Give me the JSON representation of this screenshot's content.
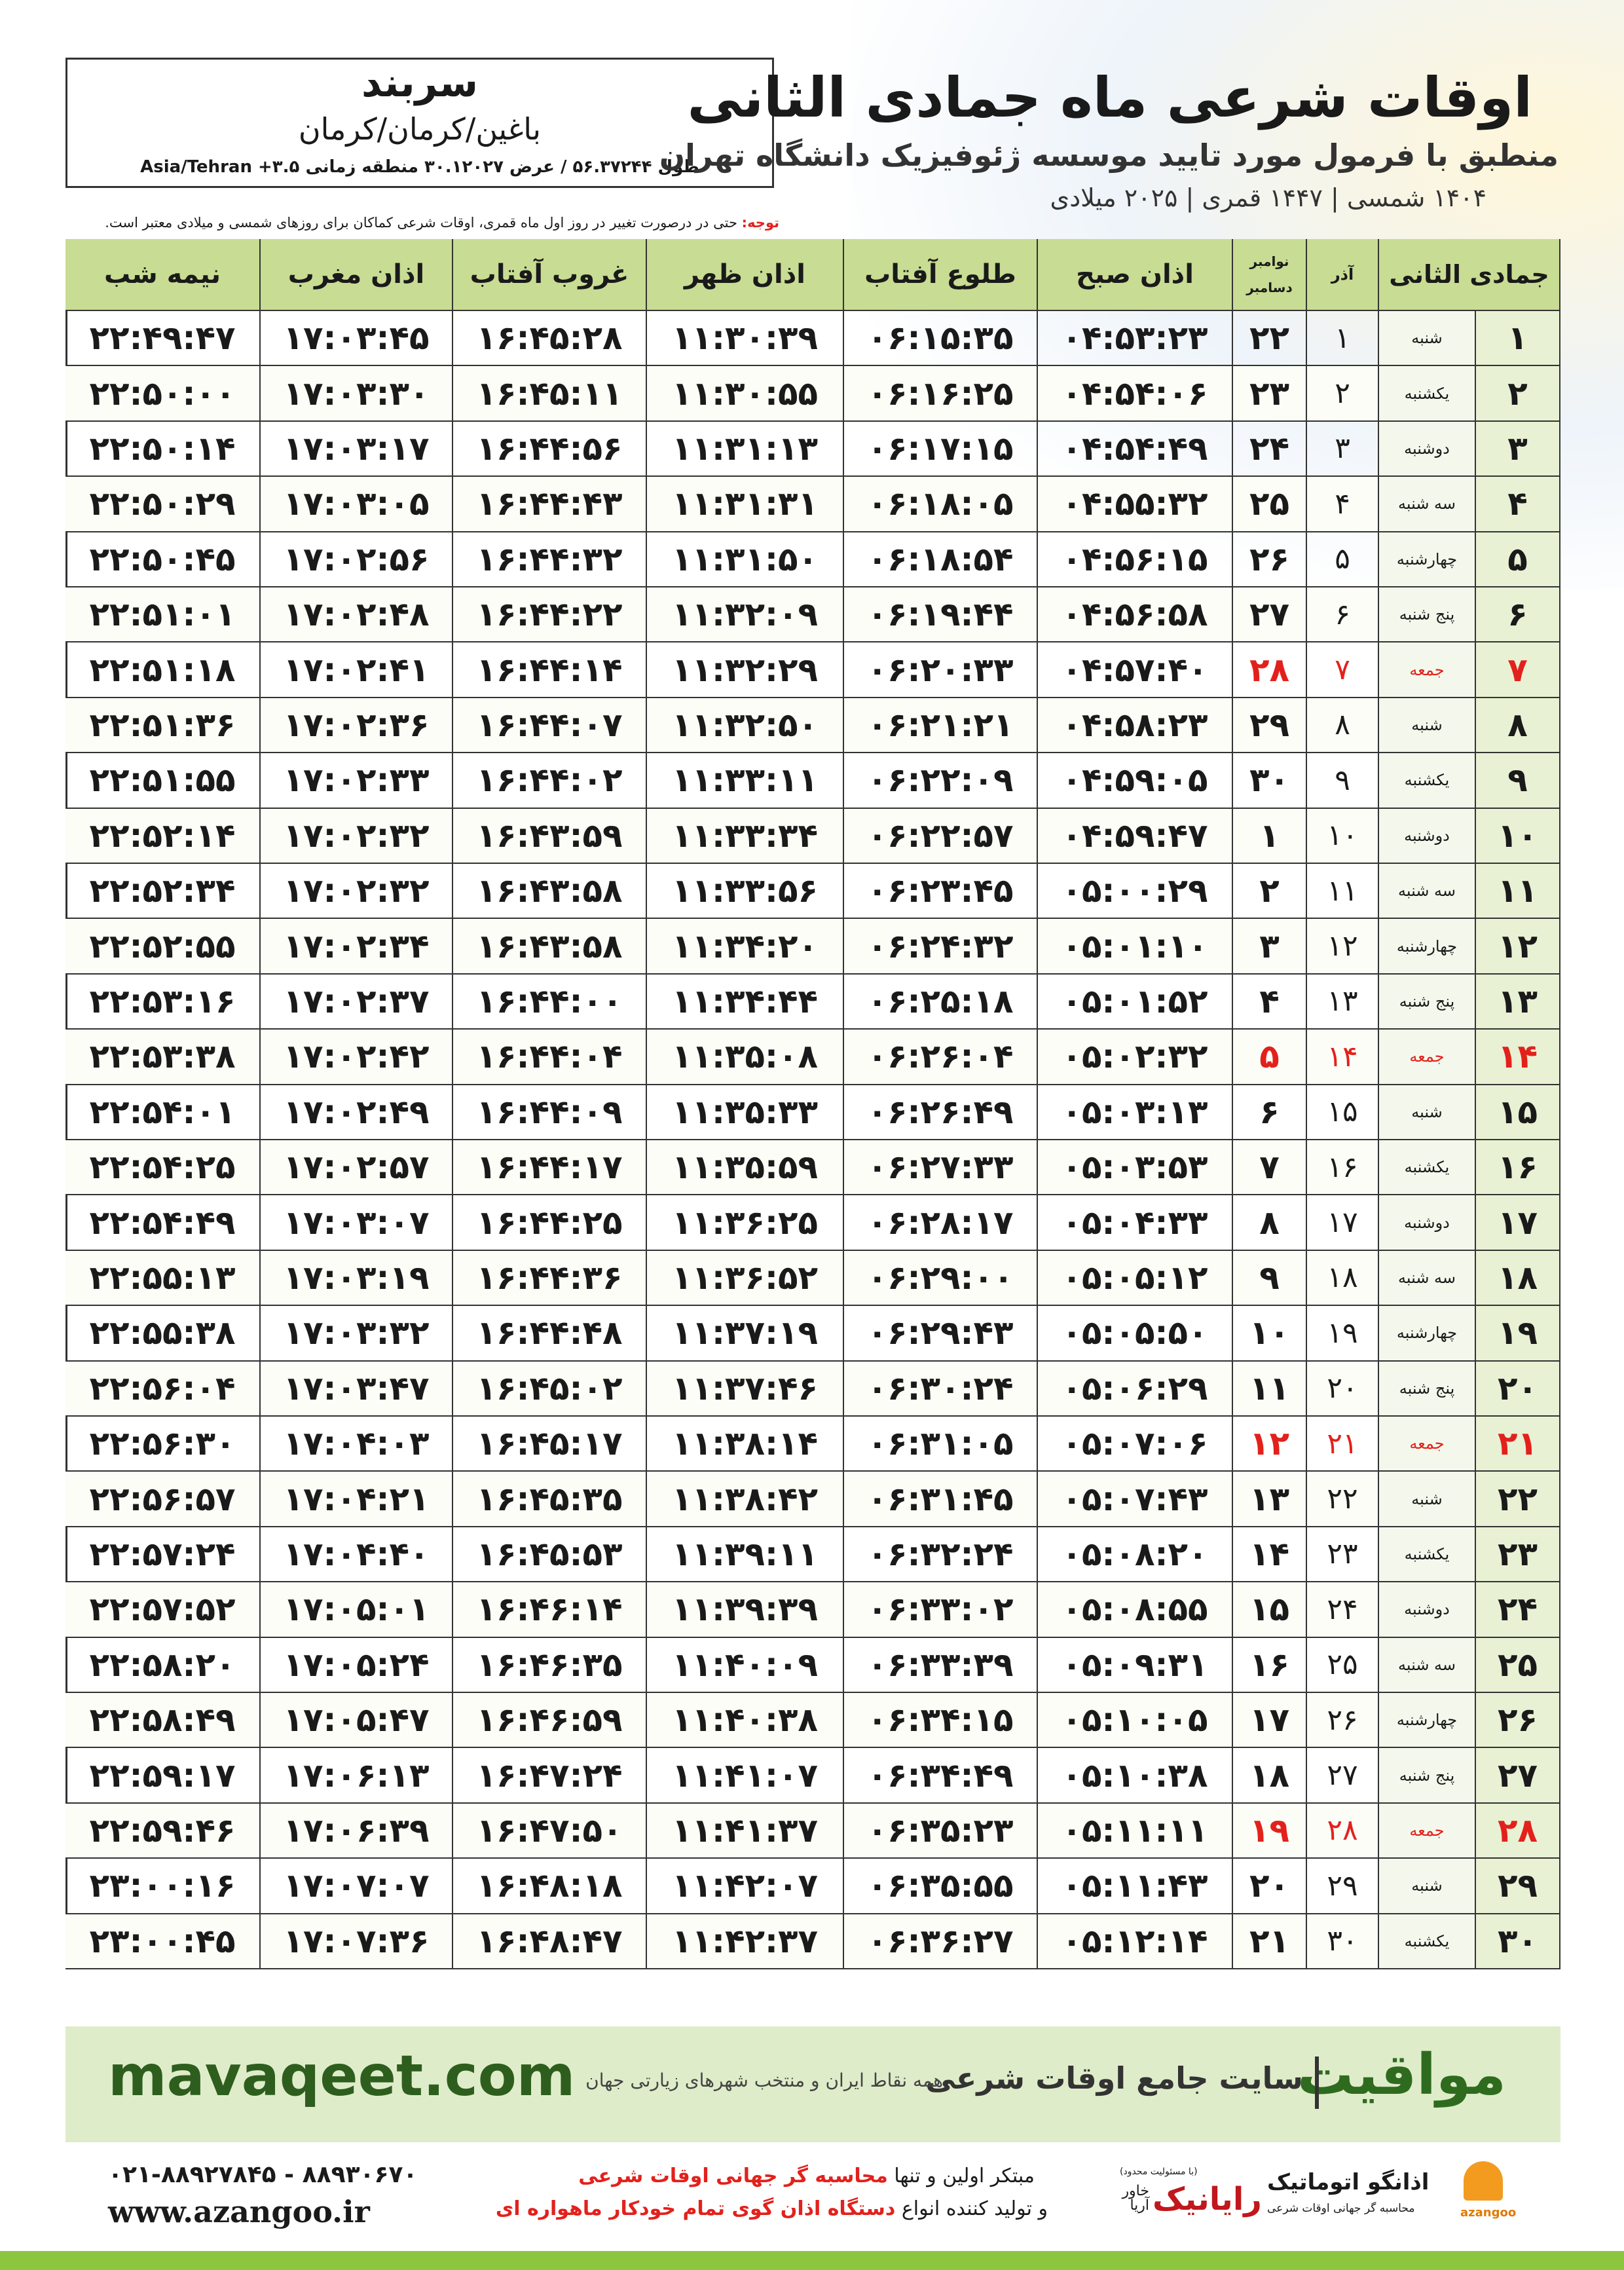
{
  "header": {
    "title": "اوقات شرعی ماه جمادی الثانی",
    "subtitle": "منطبق با فرمول مورد تایید موسسه ژئوفیزیک دانشگاه تهران",
    "dates": "۱۴۰۴ شمسی | ۱۴۴۷ قمری | ۲۰۲۵ میلادی"
  },
  "location": {
    "city": "سربند",
    "region": "باغین/کرمان/کرمان",
    "coords": "طول ۵۶.۳۷۲۴۴ / عرض ۳۰.۱۲۰۲۷ منطقه زمانی ۳.۵+ Asia/Tehran"
  },
  "note": {
    "label": "توجه:",
    "text": "حتی در درصورت تغییر در روز اول ماه قمری، اوقات شرعی کماکان برای روزهای شمسی و میلادی معتبر است."
  },
  "table": {
    "columns": [
      "جمادی الثانی",
      "آذر",
      "نوامبر",
      "دسامبر",
      "اذان صبح",
      "طلوع آفتاب",
      "اذان ظهر",
      "غروب آفتاب",
      "اذان مغرب",
      "نیمه شب"
    ],
    "rows": [
      {
        "day": "۱",
        "weekday": "شنبه",
        "azar": "۱",
        "gregorian": "۲۲",
        "times": [
          "۰۴:۵۳:۲۳",
          "۰۶:۱۵:۳۵",
          "۱۱:۳۰:۳۹",
          "۱۶:۴۵:۲۸",
          "۱۷:۰۳:۴۵",
          "۲۲:۴۹:۴۷"
        ]
      },
      {
        "day": "۲",
        "weekday": "یکشنبه",
        "azar": "۲",
        "gregorian": "۲۳",
        "times": [
          "۰۴:۵۴:۰۶",
          "۰۶:۱۶:۲۵",
          "۱۱:۳۰:۵۵",
          "۱۶:۴۵:۱۱",
          "۱۷:۰۳:۳۰",
          "۲۲:۵۰:۰۰"
        ]
      },
      {
        "day": "۳",
        "weekday": "دوشنبه",
        "azar": "۳",
        "gregorian": "۲۴",
        "times": [
          "۰۴:۵۴:۴۹",
          "۰۶:۱۷:۱۵",
          "۱۱:۳۱:۱۳",
          "۱۶:۴۴:۵۶",
          "۱۷:۰۳:۱۷",
          "۲۲:۵۰:۱۴"
        ]
      },
      {
        "day": "۴",
        "weekday": "سه شنبه",
        "azar": "۴",
        "gregorian": "۲۵",
        "times": [
          "۰۴:۵۵:۳۲",
          "۰۶:۱۸:۰۵",
          "۱۱:۳۱:۳۱",
          "۱۶:۴۴:۴۳",
          "۱۷:۰۳:۰۵",
          "۲۲:۵۰:۲۹"
        ]
      },
      {
        "day": "۵",
        "weekday": "چهارشنبه",
        "azar": "۵",
        "gregorian": "۲۶",
        "times": [
          "۰۴:۵۶:۱۵",
          "۰۶:۱۸:۵۴",
          "۱۱:۳۱:۵۰",
          "۱۶:۴۴:۳۲",
          "۱۷:۰۲:۵۶",
          "۲۲:۵۰:۴۵"
        ]
      },
      {
        "day": "۶",
        "weekday": "پنج شنبه",
        "azar": "۶",
        "gregorian": "۲۷",
        "times": [
          "۰۴:۵۶:۵۸",
          "۰۶:۱۹:۴۴",
          "۱۱:۳۲:۰۹",
          "۱۶:۴۴:۲۲",
          "۱۷:۰۲:۴۸",
          "۲۲:۵۱:۰۱"
        ]
      },
      {
        "day": "۷",
        "weekday": "جمعه",
        "azar": "۷",
        "gregorian": "۲۸",
        "color": "#e3211c",
        "times": [
          "۰۴:۵۷:۴۰",
          "۰۶:۲۰:۳۳",
          "۱۱:۳۲:۲۹",
          "۱۶:۴۴:۱۴",
          "۱۷:۰۲:۴۱",
          "۲۲:۵۱:۱۸"
        ]
      },
      {
        "day": "۸",
        "weekday": "شنبه",
        "azar": "۸",
        "gregorian": "۲۹",
        "times": [
          "۰۴:۵۸:۲۳",
          "۰۶:۲۱:۲۱",
          "۱۱:۳۲:۵۰",
          "۱۶:۴۴:۰۷",
          "۱۷:۰۲:۳۶",
          "۲۲:۵۱:۳۶"
        ]
      },
      {
        "day": "۹",
        "weekday": "یکشنبه",
        "azar": "۹",
        "gregorian": "۳۰",
        "times": [
          "۰۴:۵۹:۰۵",
          "۰۶:۲۲:۰۹",
          "۱۱:۳۳:۱۱",
          "۱۶:۴۴:۰۲",
          "۱۷:۰۲:۳۳",
          "۲۲:۵۱:۵۵"
        ]
      },
      {
        "day": "۱۰",
        "weekday": "دوشنبه",
        "azar": "۱۰",
        "gregorian": "۱",
        "times": [
          "۰۴:۵۹:۴۷",
          "۰۶:۲۲:۵۷",
          "۱۱:۳۳:۳۴",
          "۱۶:۴۳:۵۹",
          "۱۷:۰۲:۳۲",
          "۲۲:۵۲:۱۴"
        ]
      },
      {
        "day": "۱۱",
        "weekday": "سه شنبه",
        "azar": "۱۱",
        "gregorian": "۲",
        "times": [
          "۰۵:۰۰:۲۹",
          "۰۶:۲۳:۴۵",
          "۱۱:۳۳:۵۶",
          "۱۶:۴۳:۵۸",
          "۱۷:۰۲:۳۲",
          "۲۲:۵۲:۳۴"
        ]
      },
      {
        "day": "۱۲",
        "weekday": "چهارشنبه",
        "azar": "۱۲",
        "gregorian": "۳",
        "times": [
          "۰۵:۰۱:۱۰",
          "۰۶:۲۴:۳۲",
          "۱۱:۳۴:۲۰",
          "۱۶:۴۳:۵۸",
          "۱۷:۰۲:۳۴",
          "۲۲:۵۲:۵۵"
        ]
      },
      {
        "day": "۱۳",
        "weekday": "پنج شنبه",
        "azar": "۱۳",
        "gregorian": "۴",
        "times": [
          "۰۵:۰۱:۵۲",
          "۰۶:۲۵:۱۸",
          "۱۱:۳۴:۴۴",
          "۱۶:۴۴:۰۰",
          "۱۷:۰۲:۳۷",
          "۲۲:۵۳:۱۶"
        ]
      },
      {
        "day": "۱۴",
        "weekday": "جمعه",
        "azar": "۱۴",
        "gregorian": "۵",
        "color": "#e3211c",
        "times": [
          "۰۵:۰۲:۳۲",
          "۰۶:۲۶:۰۴",
          "۱۱:۳۵:۰۸",
          "۱۶:۴۴:۰۴",
          "۱۷:۰۲:۴۲",
          "۲۲:۵۳:۳۸"
        ]
      },
      {
        "day": "۱۵",
        "weekday": "شنبه",
        "azar": "۱۵",
        "gregorian": "۶",
        "times": [
          "۰۵:۰۳:۱۳",
          "۰۶:۲۶:۴۹",
          "۱۱:۳۵:۳۳",
          "۱۶:۴۴:۰۹",
          "۱۷:۰۲:۴۹",
          "۲۲:۵۴:۰۱"
        ]
      },
      {
        "day": "۱۶",
        "weekday": "یکشنبه",
        "azar": "۱۶",
        "gregorian": "۷",
        "times": [
          "۰۵:۰۳:۵۳",
          "۰۶:۲۷:۳۳",
          "۱۱:۳۵:۵۹",
          "۱۶:۴۴:۱۷",
          "۱۷:۰۲:۵۷",
          "۲۲:۵۴:۲۵"
        ]
      },
      {
        "day": "۱۷",
        "weekday": "دوشنبه",
        "azar": "۱۷",
        "gregorian": "۸",
        "times": [
          "۰۵:۰۴:۳۳",
          "۰۶:۲۸:۱۷",
          "۱۱:۳۶:۲۵",
          "۱۶:۴۴:۲۵",
          "۱۷:۰۳:۰۷",
          "۲۲:۵۴:۴۹"
        ]
      },
      {
        "day": "۱۸",
        "weekday": "سه شنبه",
        "azar": "۱۸",
        "gregorian": "۹",
        "times": [
          "۰۵:۰۵:۱۲",
          "۰۶:۲۹:۰۰",
          "۱۱:۳۶:۵۲",
          "۱۶:۴۴:۳۶",
          "۱۷:۰۳:۱۹",
          "۲۲:۵۵:۱۳"
        ]
      },
      {
        "day": "۱۹",
        "weekday": "چهارشنبه",
        "azar": "۱۹",
        "gregorian": "۱۰",
        "times": [
          "۰۵:۰۵:۵۰",
          "۰۶:۲۹:۴۳",
          "۱۱:۳۷:۱۹",
          "۱۶:۴۴:۴۸",
          "۱۷:۰۳:۳۲",
          "۲۲:۵۵:۳۸"
        ]
      },
      {
        "day": "۲۰",
        "weekday": "پنج شنبه",
        "azar": "۲۰",
        "gregorian": "۱۱",
        "times": [
          "۰۵:۰۶:۲۹",
          "۰۶:۳۰:۲۴",
          "۱۱:۳۷:۴۶",
          "۱۶:۴۵:۰۲",
          "۱۷:۰۳:۴۷",
          "۲۲:۵۶:۰۴"
        ]
      },
      {
        "day": "۲۱",
        "weekday": "جمعه",
        "azar": "۲۱",
        "gregorian": "۱۲",
        "color": "#e3211c",
        "times": [
          "۰۵:۰۷:۰۶",
          "۰۶:۳۱:۰۵",
          "۱۱:۳۸:۱۴",
          "۱۶:۴۵:۱۷",
          "۱۷:۰۴:۰۳",
          "۲۲:۵۶:۳۰"
        ]
      },
      {
        "day": "۲۲",
        "weekday": "شنبه",
        "azar": "۲۲",
        "gregorian": "۱۳",
        "times": [
          "۰۵:۰۷:۴۳",
          "۰۶:۳۱:۴۵",
          "۱۱:۳۸:۴۲",
          "۱۶:۴۵:۳۵",
          "۱۷:۰۴:۲۱",
          "۲۲:۵۶:۵۷"
        ]
      },
      {
        "day": "۲۳",
        "weekday": "یکشنبه",
        "azar": "۲۳",
        "gregorian": "۱۴",
        "times": [
          "۰۵:۰۸:۲۰",
          "۰۶:۳۲:۲۴",
          "۱۱:۳۹:۱۱",
          "۱۶:۴۵:۵۳",
          "۱۷:۰۴:۴۰",
          "۲۲:۵۷:۲۴"
        ]
      },
      {
        "day": "۲۴",
        "weekday": "دوشنبه",
        "azar": "۲۴",
        "gregorian": "۱۵",
        "times": [
          "۰۵:۰۸:۵۵",
          "۰۶:۳۳:۰۲",
          "۱۱:۳۹:۳۹",
          "۱۶:۴۶:۱۴",
          "۱۷:۰۵:۰۱",
          "۲۲:۵۷:۵۲"
        ]
      },
      {
        "day": "۲۵",
        "weekday": "سه شنبه",
        "azar": "۲۵",
        "gregorian": "۱۶",
        "times": [
          "۰۵:۰۹:۳۱",
          "۰۶:۳۳:۳۹",
          "۱۱:۴۰:۰۹",
          "۱۶:۴۶:۳۵",
          "۱۷:۰۵:۲۴",
          "۲۲:۵۸:۲۰"
        ]
      },
      {
        "day": "۲۶",
        "weekday": "چهارشنبه",
        "azar": "۲۶",
        "gregorian": "۱۷",
        "times": [
          "۰۵:۱۰:۰۵",
          "۰۶:۳۴:۱۵",
          "۱۱:۴۰:۳۸",
          "۱۶:۴۶:۵۹",
          "۱۷:۰۵:۴۷",
          "۲۲:۵۸:۴۹"
        ]
      },
      {
        "day": "۲۷",
        "weekday": "پنج شنبه",
        "azar": "۲۷",
        "gregorian": "۱۸",
        "times": [
          "۰۵:۱۰:۳۸",
          "۰۶:۳۴:۴۹",
          "۱۱:۴۱:۰۷",
          "۱۶:۴۷:۲۴",
          "۱۷:۰۶:۱۳",
          "۲۲:۵۹:۱۷"
        ]
      },
      {
        "day": "۲۸",
        "weekday": "جمعه",
        "azar": "۲۸",
        "gregorian": "۱۹",
        "color": "#e3211c",
        "times": [
          "۰۵:۱۱:۱۱",
          "۰۶:۳۵:۲۳",
          "۱۱:۴۱:۳۷",
          "۱۶:۴۷:۵۰",
          "۱۷:۰۶:۳۹",
          "۲۲:۵۹:۴۶"
        ]
      },
      {
        "day": "۲۹",
        "weekday": "شنبه",
        "azar": "۲۹",
        "gregorian": "۲۰",
        "times": [
          "۰۵:۱۱:۴۳",
          "۰۶:۳۵:۵۵",
          "۱۱:۴۲:۰۷",
          "۱۶:۴۸:۱۸",
          "۱۷:۰۷:۰۷",
          "۲۳:۰۰:۱۶"
        ]
      },
      {
        "day": "۳۰",
        "weekday": "یکشنبه",
        "azar": "۳۰",
        "gregorian": "۲۱",
        "times": [
          "۰۵:۱۲:۱۴",
          "۰۶:۳۶:۲۷",
          "۱۱:۴۲:۳۷",
          "۱۶:۴۸:۴۷",
          "۱۷:۰۷:۳۶",
          "۲۳:۰۰:۴۵"
        ]
      }
    ]
  },
  "footer": {
    "brand": "مواقیت",
    "tagline": "سایت جامع اوقات شرعی",
    "coverage": "همه نقاط ایران و منتخب شهرهای زیارتی جهان",
    "site": "mavaqeet.com"
  },
  "contact": {
    "phones": "۰۲۱-۸۸۹۲۷۸۴۵ - ۸۸۹۳۰۶۷۰",
    "web": "www.azangoo.ir",
    "line1": "مبتکر اولین و تنها",
    "line1_highlight": "محاسبه گر جهانی اوقات شرعی",
    "line2": "و تولید کننده انواع",
    "line2_highlight": "دستگاه اذان گوی تمام خودکار ماهواره ای"
  },
  "logos": {
    "raianik_note": "(با مسئولیت محدود)",
    "raianik": "رایانیک",
    "khavar": "خاور آریا",
    "azangoo_fa": "اذانگو اتوماتیک",
    "azangoo_sub": "محاسبه گر جهانی اوقات شرعی",
    "azangoo_en": "azangoo"
  }
}
